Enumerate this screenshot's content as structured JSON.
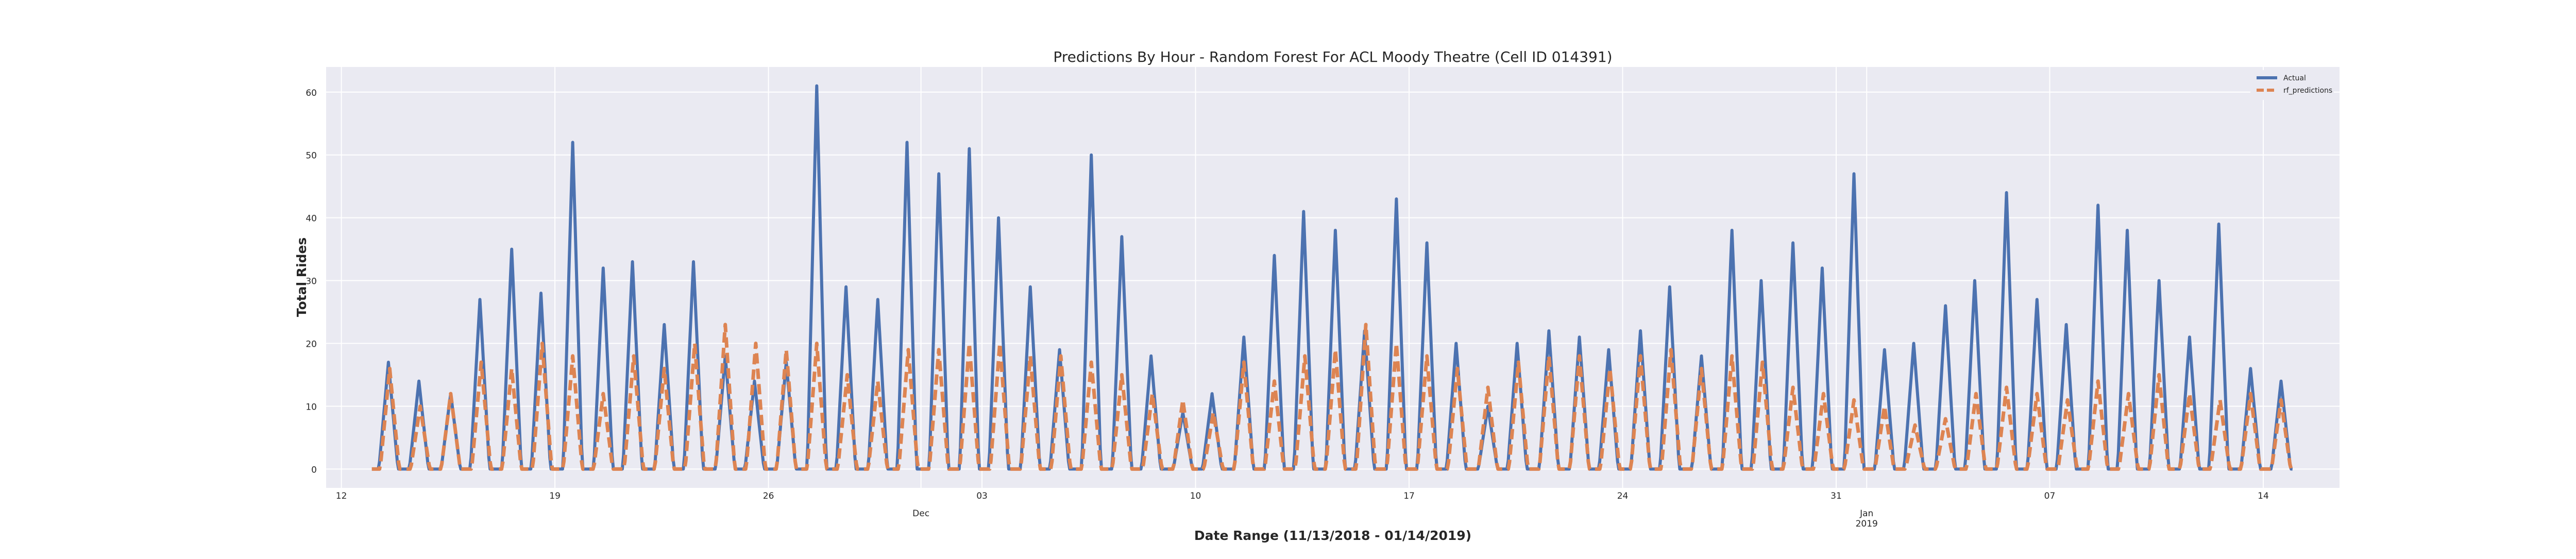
{
  "chart_data": {
    "type": "line",
    "title": "Predictions By Hour - Random Forest For ACL Moody Theatre (Cell ID 014391)",
    "xlabel": "Date Range (11/13/2018 - 01/14/2019)",
    "ylabel": "Total Rides",
    "xlim": [
      "2018-11-11T12:00",
      "2019-01-16T12:00"
    ],
    "ylim": [
      -3,
      64
    ],
    "grid": true,
    "legend_position": "top-right",
    "y_ticks": [
      0,
      10,
      20,
      30,
      40,
      50,
      60
    ],
    "x_ticks": [
      {
        "date": "2018-11-12",
        "label": "12",
        "sublabel": "",
        "sublabel2": ""
      },
      {
        "date": "2018-11-19",
        "label": "19",
        "sublabel": "",
        "sublabel2": ""
      },
      {
        "date": "2018-11-26",
        "label": "26",
        "sublabel": "",
        "sublabel2": ""
      },
      {
        "date": "2018-12-01",
        "label": "",
        "sublabel": "Dec",
        "sublabel2": ""
      },
      {
        "date": "2018-12-03",
        "label": "03",
        "sublabel": "",
        "sublabel2": ""
      },
      {
        "date": "2018-12-10",
        "label": "10",
        "sublabel": "",
        "sublabel2": ""
      },
      {
        "date": "2018-12-17",
        "label": "17",
        "sublabel": "",
        "sublabel2": ""
      },
      {
        "date": "2018-12-24",
        "label": "24",
        "sublabel": "",
        "sublabel2": ""
      },
      {
        "date": "2018-12-31",
        "label": "31",
        "sublabel": "",
        "sublabel2": ""
      },
      {
        "date": "2019-01-01",
        "label": "",
        "sublabel": "Jan",
        "sublabel2": "2019"
      },
      {
        "date": "2019-01-07",
        "label": "07",
        "sublabel": "",
        "sublabel2": ""
      },
      {
        "date": "2019-01-14",
        "label": "14",
        "sublabel": "",
        "sublabel2": ""
      }
    ],
    "daily_x": [
      "2018-11-13",
      "2018-11-14",
      "2018-11-15",
      "2018-11-16",
      "2018-11-17",
      "2018-11-18",
      "2018-11-19",
      "2018-11-20",
      "2018-11-21",
      "2018-11-22",
      "2018-11-23",
      "2018-11-24",
      "2018-11-25",
      "2018-11-26",
      "2018-11-27",
      "2018-11-28",
      "2018-11-29",
      "2018-11-30",
      "2018-12-01",
      "2018-12-02",
      "2018-12-03",
      "2018-12-04",
      "2018-12-05",
      "2018-12-06",
      "2018-12-07",
      "2018-12-08",
      "2018-12-09",
      "2018-12-10",
      "2018-12-11",
      "2018-12-12",
      "2018-12-13",
      "2018-12-14",
      "2018-12-15",
      "2018-12-16",
      "2018-12-17",
      "2018-12-18",
      "2018-12-19",
      "2018-12-20",
      "2018-12-21",
      "2018-12-22",
      "2018-12-23",
      "2018-12-24",
      "2018-12-25",
      "2018-12-26",
      "2018-12-27",
      "2018-12-28",
      "2018-12-29",
      "2018-12-30",
      "2018-12-31",
      "2019-01-01",
      "2019-01-02",
      "2019-01-03",
      "2019-01-04",
      "2019-01-05",
      "2019-01-06",
      "2019-01-07",
      "2019-01-08",
      "2019-01-09",
      "2019-01-10",
      "2019-01-11",
      "2019-01-12",
      "2019-01-13",
      "2019-01-14"
    ],
    "series": [
      {
        "name": "Actual",
        "color": "#4c72b0",
        "dashed": false,
        "daily_peaks": [
          17,
          14,
          12,
          27,
          35,
          28,
          52,
          32,
          33,
          23,
          33,
          18,
          14,
          17,
          61,
          29,
          27,
          52,
          47,
          51,
          40,
          29,
          19,
          50,
          37,
          18,
          9,
          12,
          21,
          34,
          41,
          38,
          22,
          43,
          36,
          20,
          10,
          20,
          22,
          21,
          19,
          22,
          29,
          18,
          38,
          30,
          36,
          32,
          47,
          19,
          20,
          26,
          30,
          44,
          27,
          23,
          42,
          38,
          30,
          21,
          39,
          16,
          14
        ],
        "hourly_peak_hours": [
          13,
          13,
          14,
          13,
          14,
          13,
          14,
          14,
          13,
          14,
          13,
          14,
          13,
          14,
          14,
          13,
          14,
          13,
          14,
          14,
          13,
          14,
          13,
          14,
          14,
          13,
          14,
          13,
          14,
          14,
          13,
          14,
          13,
          14,
          14,
          13,
          14,
          13,
          14,
          14,
          13,
          14,
          13,
          14,
          14,
          13,
          14,
          13,
          14,
          14,
          13,
          14,
          13,
          14,
          14,
          13,
          14,
          13,
          14,
          14,
          13,
          14,
          14
        ]
      },
      {
        "name": "rf_predictions",
        "color": "#dd8452",
        "dashed": true,
        "daily_peaks": [
          16,
          10,
          12,
          17,
          16,
          20,
          18,
          12,
          18,
          16,
          20,
          23,
          20,
          19,
          20,
          15,
          14,
          19,
          19,
          20,
          20,
          18,
          18,
          17,
          15,
          12,
          11,
          9,
          17,
          14,
          18,
          19,
          23,
          20,
          18,
          16,
          13,
          17,
          18,
          18,
          16,
          18,
          19,
          16,
          18,
          17,
          13,
          12,
          11,
          10,
          7,
          8,
          12,
          13,
          12,
          11,
          14,
          12,
          15,
          12,
          11,
          12,
          11
        ],
        "hourly_peak_hours": [
          14,
          14,
          14,
          14,
          14,
          14,
          14,
          14,
          14,
          14,
          14,
          14,
          14,
          14,
          14,
          14,
          14,
          14,
          14,
          14,
          14,
          14,
          14,
          14,
          14,
          14,
          14,
          14,
          14,
          14,
          14,
          14,
          14,
          14,
          14,
          14,
          14,
          14,
          14,
          14,
          14,
          14,
          14,
          14,
          14,
          14,
          14,
          14,
          14,
          14,
          14,
          14,
          14,
          14,
          14,
          14,
          14,
          14,
          14,
          14,
          14,
          14,
          14
        ]
      }
    ]
  }
}
